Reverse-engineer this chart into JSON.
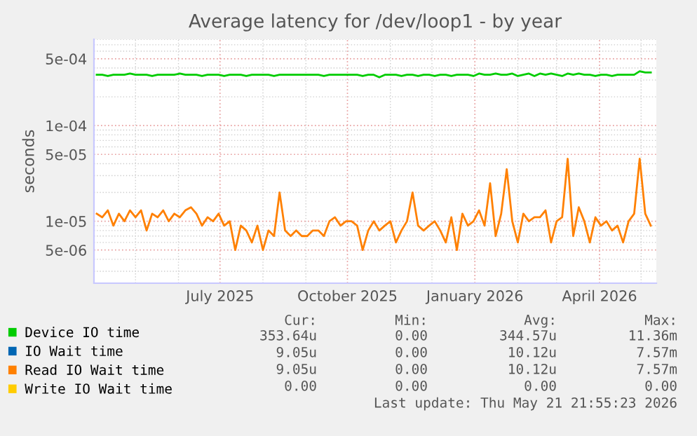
{
  "chart_data": {
    "type": "line",
    "title": "Average latency for /dev/loop1 - by year",
    "ylabel": "seconds",
    "log": "y",
    "grid": true,
    "legend": "bottom",
    "xlim": [
      "2025-04-01",
      "2026-05-12"
    ],
    "xticks": [
      {
        "value": "2025-07-01",
        "label": "July 2025"
      },
      {
        "value": "2025-10-01",
        "label": "October 2025"
      },
      {
        "value": "2026-01-01",
        "label": "January 2026"
      },
      {
        "value": "2026-04-01",
        "label": "April 2026"
      }
    ],
    "ylim": [
      2.25e-06,
      0.0008
    ],
    "yticks": [
      {
        "value": 5e-06,
        "label": "5e-06"
      },
      {
        "value": 1e-05,
        "label": "1e-05"
      },
      {
        "value": 5e-05,
        "label": "5e-05"
      },
      {
        "value": 0.0001,
        "label": "1e-04"
      },
      {
        "value": 0.0005,
        "label": "5e-04"
      }
    ],
    "x": [
      "2025-04-03",
      "2025-04-07",
      "2025-04-11",
      "2025-04-15",
      "2025-04-19",
      "2025-04-23",
      "2025-04-27",
      "2025-05-01",
      "2025-05-05",
      "2025-05-09",
      "2025-05-13",
      "2025-05-17",
      "2025-05-21",
      "2025-05-25",
      "2025-05-29",
      "2025-06-02",
      "2025-06-06",
      "2025-06-10",
      "2025-06-14",
      "2025-06-18",
      "2025-06-22",
      "2025-06-26",
      "2025-06-30",
      "2025-07-04",
      "2025-07-08",
      "2025-07-12",
      "2025-07-16",
      "2025-07-20",
      "2025-07-24",
      "2025-07-28",
      "2025-08-01",
      "2025-08-05",
      "2025-08-09",
      "2025-08-13",
      "2025-08-17",
      "2025-08-21",
      "2025-08-25",
      "2025-08-29",
      "2025-09-02",
      "2025-09-06",
      "2025-09-10",
      "2025-09-14",
      "2025-09-18",
      "2025-09-22",
      "2025-09-26",
      "2025-09-30",
      "2025-10-04",
      "2025-10-08",
      "2025-10-12",
      "2025-10-16",
      "2025-10-20",
      "2025-10-24",
      "2025-10-28",
      "2025-11-01",
      "2025-11-05",
      "2025-11-09",
      "2025-11-13",
      "2025-11-17",
      "2025-11-21",
      "2025-11-25",
      "2025-11-29",
      "2025-12-03",
      "2025-12-07",
      "2025-12-11",
      "2025-12-15",
      "2025-12-19",
      "2025-12-23",
      "2025-12-27",
      "2025-12-31",
      "2026-01-04",
      "2026-01-08",
      "2026-01-12",
      "2026-01-16",
      "2026-01-20",
      "2026-01-24",
      "2026-01-28",
      "2026-02-01",
      "2026-02-05",
      "2026-02-09",
      "2026-02-13",
      "2026-02-17",
      "2026-02-21",
      "2026-02-25",
      "2026-03-01",
      "2026-03-05",
      "2026-03-09",
      "2026-03-13",
      "2026-03-17",
      "2026-03-21",
      "2026-03-25",
      "2026-03-29",
      "2026-04-02",
      "2026-04-06",
      "2026-04-10",
      "2026-04-14",
      "2026-04-18",
      "2026-04-22",
      "2026-04-26",
      "2026-04-30",
      "2026-05-04",
      "2026-05-08"
    ],
    "series": [
      {
        "name": "Device IO time",
        "color": "#00cc00",
        "values": [
          0.00034,
          0.00034,
          0.00033,
          0.00034,
          0.00034,
          0.00034,
          0.00035,
          0.00034,
          0.00034,
          0.00034,
          0.00033,
          0.00034,
          0.00034,
          0.00034,
          0.00034,
          0.00035,
          0.00034,
          0.00034,
          0.00034,
          0.00033,
          0.00034,
          0.00034,
          0.00034,
          0.00033,
          0.00034,
          0.00034,
          0.00034,
          0.00033,
          0.00034,
          0.00034,
          0.00034,
          0.00034,
          0.00033,
          0.00034,
          0.00034,
          0.00034,
          0.00034,
          0.00034,
          0.00034,
          0.00034,
          0.00034,
          0.00033,
          0.00034,
          0.00034,
          0.00034,
          0.00034,
          0.00034,
          0.00034,
          0.00033,
          0.00034,
          0.00034,
          0.00032,
          0.00034,
          0.00034,
          0.00034,
          0.00033,
          0.00034,
          0.00034,
          0.00033,
          0.00034,
          0.00034,
          0.00033,
          0.00034,
          0.00034,
          0.00033,
          0.00034,
          0.00034,
          0.00034,
          0.00033,
          0.00035,
          0.00034,
          0.00034,
          0.00035,
          0.00034,
          0.00034,
          0.00035,
          0.00033,
          0.00034,
          0.00035,
          0.00033,
          0.00035,
          0.00034,
          0.00035,
          0.00034,
          0.00033,
          0.00035,
          0.00034,
          0.00035,
          0.00034,
          0.00034,
          0.00033,
          0.00034,
          0.00034,
          0.00033,
          0.00034,
          0.00034,
          0.00034,
          0.00034,
          0.00037,
          0.00036,
          0.00036
        ]
      },
      {
        "name": "IO Wait time",
        "color": "#0066b3",
        "values": [
          null,
          null,
          null,
          null,
          null,
          null,
          null,
          null,
          null,
          null,
          null,
          null,
          null,
          null,
          null,
          null,
          null,
          null,
          null,
          null,
          null,
          null,
          null,
          null,
          null,
          null,
          null,
          null,
          null,
          null,
          null,
          null,
          null,
          null,
          null,
          null,
          null,
          null,
          null,
          null,
          null,
          null,
          null,
          null,
          null,
          null,
          null,
          null,
          null,
          null,
          null,
          null,
          null,
          null,
          null,
          null,
          null,
          null,
          null,
          null,
          null,
          null,
          null,
          null,
          null,
          null,
          null,
          null,
          null,
          null,
          null,
          null,
          null,
          null,
          null,
          null,
          null,
          null,
          null,
          null,
          null,
          null,
          null,
          null,
          null,
          null,
          null,
          null,
          null,
          null,
          null,
          null,
          null,
          null,
          null,
          null,
          null,
          null,
          null,
          null,
          null
        ]
      },
      {
        "name": "Read IO Wait time",
        "color": "#ff8000",
        "values": [
          1.2e-05,
          1.1e-05,
          1.3e-05,
          9e-06,
          1.2e-05,
          1e-05,
          1.3e-05,
          1.1e-05,
          1.3e-05,
          8e-06,
          1.2e-05,
          1.1e-05,
          1.3e-05,
          1e-05,
          1.2e-05,
          1.1e-05,
          1.3e-05,
          1.4e-05,
          1.2e-05,
          9e-06,
          1.1e-05,
          1e-05,
          1.2e-05,
          9e-06,
          1e-05,
          5e-06,
          9e-06,
          8e-06,
          6e-06,
          9e-06,
          5e-06,
          8e-06,
          7e-06,
          2e-05,
          8e-06,
          7e-06,
          8e-06,
          7e-06,
          7e-06,
          8e-06,
          8e-06,
          7e-06,
          1e-05,
          1.1e-05,
          9e-06,
          1e-05,
          1e-05,
          9e-06,
          5e-06,
          8e-06,
          1e-05,
          8e-06,
          9e-06,
          1e-05,
          6e-06,
          8e-06,
          1e-05,
          2e-05,
          9e-06,
          8e-06,
          9e-06,
          1e-05,
          8e-06,
          6e-06,
          1.1e-05,
          5e-06,
          1.2e-05,
          9e-06,
          1e-05,
          1.3e-05,
          9e-06,
          2.5e-05,
          7e-06,
          1.2e-05,
          3.5e-05,
          1e-05,
          6e-06,
          1.2e-05,
          1e-05,
          1.1e-05,
          1.1e-05,
          1.3e-05,
          6e-06,
          1e-05,
          1.1e-05,
          4.5e-05,
          7e-06,
          1.4e-05,
          1e-05,
          6e-06,
          1.1e-05,
          9e-06,
          1e-05,
          8e-06,
          9e-06,
          6e-06,
          1e-05,
          1.2e-05,
          4.5e-05,
          1.2e-05,
          9e-06
        ]
      },
      {
        "name": "Write IO Wait time",
        "color": "#ffcc00",
        "values": [
          null,
          null,
          null,
          null,
          null,
          null,
          null,
          null,
          null,
          null,
          null,
          null,
          null,
          null,
          null,
          null,
          null,
          null,
          null,
          null,
          null,
          null,
          null,
          null,
          null,
          null,
          null,
          null,
          null,
          null,
          null,
          null,
          null,
          null,
          null,
          null,
          null,
          null,
          null,
          null,
          null,
          null,
          null,
          null,
          null,
          null,
          null,
          null,
          null,
          null,
          null,
          null,
          null,
          null,
          null,
          null,
          null,
          null,
          null,
          null,
          null,
          null,
          null,
          null,
          null,
          null,
          null,
          null,
          null,
          null,
          null,
          null,
          null,
          null,
          null,
          null,
          null,
          null,
          null,
          null,
          null,
          null,
          null,
          null,
          null,
          null,
          null,
          null,
          null,
          null,
          null,
          null,
          null,
          null,
          null,
          null,
          null,
          null,
          null,
          null,
          null
        ]
      }
    ],
    "annotations": [
      "Cur:",
      "Min:",
      "Avg:",
      "Max:",
      "353.64u",
      "0.00",
      "344.57u",
      "11.36m",
      "9.05u",
      "0.00",
      "10.12u",
      "7.57m",
      "9.05u",
      "0.00",
      "10.12u",
      "7.57m",
      "0.00",
      "0.00",
      "0.00",
      "0.00",
      "Last update: Thu May 21 21:55:23 2026"
    ]
  }
}
